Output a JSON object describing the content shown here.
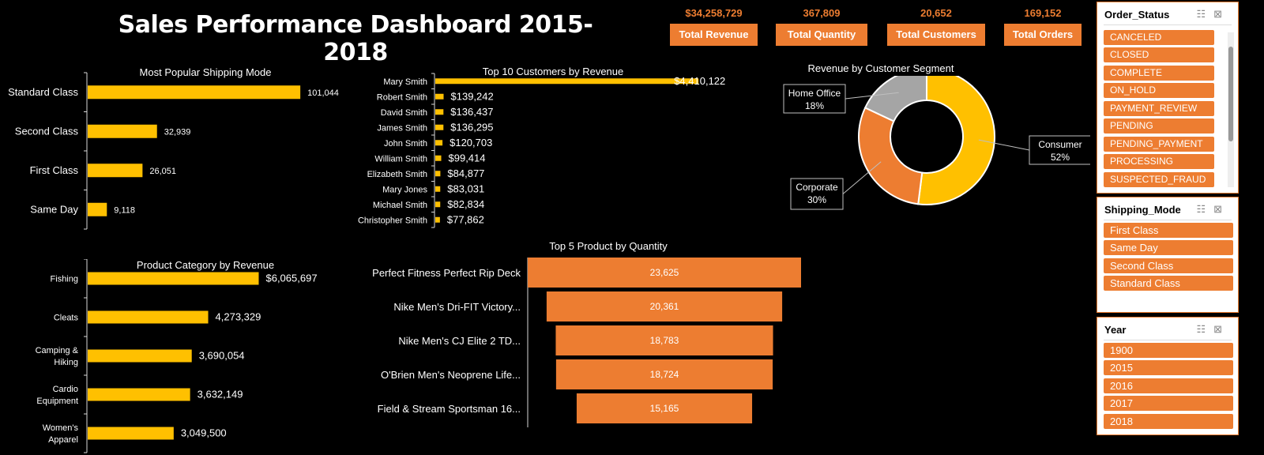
{
  "title": "Sales Performance Dashboard 2015-2018",
  "kpis": [
    {
      "value": "$34,258,729",
      "label": "Total Revenue"
    },
    {
      "value": "367,809",
      "label": "Total Quantity"
    },
    {
      "value": "20,652",
      "label": "Total Customers"
    },
    {
      "value": "169,152",
      "label": "Total Orders"
    }
  ],
  "colors": {
    "bar": "#ffc000",
    "accent": "#ed7d31",
    "gray": "#a5a5a5"
  },
  "chart_data": [
    {
      "type": "bar",
      "orientation": "horizontal",
      "title": "Most Popular Shipping Mode",
      "categories": [
        "Standard Class",
        "Second Class",
        "First Class",
        "Same Day"
      ],
      "values": [
        101044,
        32939,
        26051,
        9118
      ],
      "labels": [
        "101,044",
        "32,939",
        "26,051",
        "9,118"
      ],
      "xlim": [
        0,
        110000
      ]
    },
    {
      "type": "bar",
      "orientation": "horizontal",
      "title": "Top 10 Customers by Revenue",
      "categories": [
        "Mary Smith",
        "Robert Smith",
        "David Smith",
        "James Smith",
        "John Smith",
        "William Smith",
        "Elizabeth Smith",
        "Mary Jones",
        "Michael Smith",
        "Christopher Smith"
      ],
      "values": [
        4410122,
        139242,
        136437,
        136295,
        120703,
        99414,
        84877,
        83031,
        82834,
        77862
      ],
      "labels": [
        "$4,410,122",
        "$139,242",
        "$136,437",
        "$136,295",
        "$120,703",
        "$99,414",
        "$84,877",
        "$83,031",
        "$82,834",
        "$77,862"
      ],
      "xlim": [
        0,
        4500000
      ]
    },
    {
      "type": "pie",
      "donut": true,
      "title": "Revenue by Customer Segment",
      "categories": [
        "Consumer",
        "Corporate",
        "Home Office"
      ],
      "values": [
        52,
        30,
        18
      ],
      "labels": [
        "52%",
        "30%",
        "18%"
      ]
    },
    {
      "type": "bar",
      "orientation": "horizontal",
      "title": "Product Category by Revenue",
      "categories": [
        [
          "Fishing"
        ],
        [
          "Cleats"
        ],
        [
          "Camping &",
          "Hiking"
        ],
        [
          "Cardio",
          "Equipment"
        ],
        [
          "Women's",
          "Apparel"
        ]
      ],
      "values": [
        6065697,
        4273329,
        3690054,
        3632149,
        3049500
      ],
      "labels": [
        "$6,065,697",
        "4,273,329",
        "3,690,054",
        "3,632,149",
        "3,049,500"
      ],
      "xlim": [
        0,
        6500000
      ]
    },
    {
      "type": "bar",
      "style": "funnel",
      "title": "Top 5 Product by  Quantity",
      "categories": [
        "Perfect Fitness Perfect Rip Deck",
        "Nike Men's Dri-FIT Victory...",
        "Nike Men's CJ Elite 2 TD...",
        "O'Brien Men's Neoprene Life...",
        "Field & Stream Sportsman 16..."
      ],
      "values": [
        23625,
        20361,
        18783,
        18724,
        15165
      ],
      "labels": [
        "23,625",
        "20,361",
        "18,783",
        "18,724",
        "15,165"
      ]
    }
  ],
  "slicers": [
    {
      "title": "Order_Status",
      "items": [
        "CANCELED",
        "CLOSED",
        "COMPLETE",
        "ON_HOLD",
        "PAYMENT_REVIEW",
        "PENDING",
        "PENDING_PAYMENT",
        "PROCESSING",
        "SUSPECTED_FRAUD"
      ]
    },
    {
      "title": "Shipping_Mode",
      "items": [
        "First Class",
        "Same Day",
        "Second Class",
        "Standard Class"
      ]
    },
    {
      "title": "Year",
      "items": [
        "1900",
        "2015",
        "2016",
        "2017",
        "2018"
      ]
    }
  ]
}
